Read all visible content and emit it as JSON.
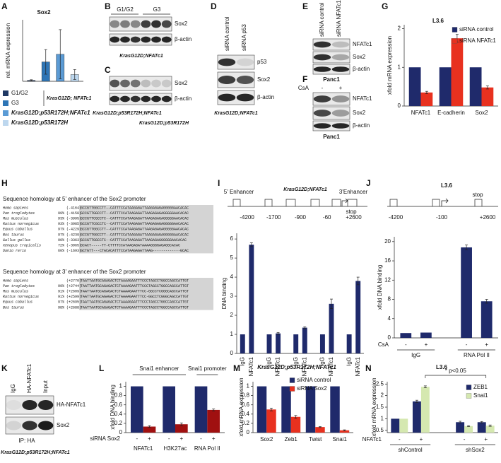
{
  "chart_data": [
    {
      "panel": "A",
      "type": "bar",
      "title": "Sox2",
      "y_label": "rel. mRNA expression",
      "categories": [
        "G1/G2",
        "G3",
        "KrasG12D;p53R172H;NFATc1",
        "KrasG12D;p53R172H"
      ],
      "values": [
        0.003,
        0.063,
        0.088,
        0.022
      ],
      "errors": [
        0.002,
        0.04,
        0.08,
        0.016
      ],
      "colors": [
        "#1f3864",
        "#2e75b6",
        "#5b9bd5",
        "#bdd7ee"
      ],
      "ylim": [
        0,
        0.2
      ],
      "legend_bracket": "KrasG12D; NFATc1"
    },
    {
      "panel": "G",
      "type": "bar",
      "title": "L3.6",
      "y_label": "xfold mRNA expression",
      "categories": [
        "NFATc1",
        "E-cadherin",
        "Sox2"
      ],
      "series": [
        {
          "name": "siRNA control",
          "color": "#1f2a6b",
          "values": [
            1,
            1,
            1
          ]
        },
        {
          "name": "siRNA NFATc1",
          "color": "#e8311f",
          "values": [
            0.35,
            1.75,
            0.48
          ],
          "errors": [
            0.03,
            0.1,
            0.04
          ]
        }
      ],
      "ylim": [
        0,
        2.1
      ],
      "yticks": [
        0,
        1,
        2
      ]
    },
    {
      "panel": "I",
      "type": "bar",
      "title": "KrasG12D;NFATc1",
      "y_label": "DNA binding",
      "categories": [
        "IgG",
        "NFATc1",
        "IgG",
        "NFATc1",
        "IgG",
        "NFATc1",
        "IgG",
        "NFATc1",
        "IgG",
        "NFATc1"
      ],
      "values": [
        1,
        5.7,
        1,
        1.05,
        1,
        1.35,
        1,
        2.6,
        1,
        3.8
      ],
      "errors": [
        null,
        0.1,
        null,
        0.05,
        null,
        0.05,
        null,
        0.25,
        null,
        0.2
      ],
      "color": "#1f2a6b",
      "ylim": [
        0,
        6.3
      ],
      "yticks": [
        0,
        1,
        2,
        3,
        4,
        5,
        6
      ],
      "positions": [
        "-4200",
        "-1700",
        "-900",
        "-60",
        "+2600"
      ],
      "enhancer_5": "5' Enhancer",
      "enhancer_3": "3'Enhancer",
      "stop": "stop"
    },
    {
      "panel": "J",
      "type": "bar",
      "title": "L3.6",
      "y_label": "xfold DNA binding",
      "categories": [
        "-",
        "+",
        "-",
        "+"
      ],
      "groups": [
        "IgG",
        "RNA Pol II"
      ],
      "row_label": "CsA",
      "values": [
        1,
        1.1,
        18.8,
        7.6
      ],
      "errors": [
        null,
        null,
        0.5,
        0.4
      ],
      "color": "#1f2a6b",
      "ylim": [
        0,
        21
      ],
      "yticks": [
        0,
        4,
        8,
        12,
        16,
        20
      ],
      "positions": [
        "-4200",
        "-100",
        "+2600"
      ],
      "stop": "stop"
    },
    {
      "panel": "L",
      "type": "bar",
      "y_label": "xfold DNA binding",
      "categories": [
        "NFATc1",
        "H3K27ac",
        "RNA Pol II"
      ],
      "series": [
        {
          "name": "-",
          "color": "#1f2a6b",
          "values": [
            1,
            1,
            1
          ]
        },
        {
          "name": "+",
          "color": "#a01010",
          "values": [
            0.13,
            0.18,
            0.49
          ],
          "errors": [
            0.02,
            0.03,
            0.02
          ]
        }
      ],
      "legend_title": "siRNA Sox2",
      "ylim": [
        0,
        1.1
      ],
      "yticks": [
        0,
        0.2,
        0.4,
        0.6,
        0.8,
        1
      ],
      "headers": [
        "Snai1 enhancer",
        "Snai1 promoter"
      ]
    },
    {
      "panel": "M",
      "type": "bar",
      "title": "KrasG12D;p53R172H;NFATc1",
      "y_label": "xfold mRNA expression",
      "categories": [
        "Sox2",
        "Zeb1",
        "Twist",
        "Snai1"
      ],
      "series": [
        {
          "name": "siRNA control",
          "color": "#1f2a6b",
          "values": [
            1,
            1,
            1,
            1
          ]
        },
        {
          "name": "siRNA Sox2",
          "color": "#e8311f",
          "values": [
            0.5,
            0.34,
            0.12,
            0.05
          ],
          "errors": [
            0.03,
            0.03,
            0.01,
            0.01
          ]
        }
      ],
      "ylim": [
        0,
        1.1
      ],
      "yticks": [
        0,
        0.2,
        0.4,
        0.6,
        0.8,
        1
      ]
    },
    {
      "panel": "N",
      "type": "bar",
      "title": "L3.6",
      "y_label": "xfold mRNA expression",
      "categories": [
        "-",
        "+",
        "-",
        "+"
      ],
      "groups": [
        "shControl",
        "shSox2"
      ],
      "row_label": "NFATc1",
      "series": [
        {
          "name": "ZEB1",
          "color": "#1f2a6b",
          "values": [
            1,
            1.75,
            0.85,
            0.85
          ],
          "errors": [
            null,
            0.05,
            0.04,
            0.03
          ]
        },
        {
          "name": "Snai1",
          "color": "#d5e8b0",
          "values": [
            1,
            2.38,
            0.68,
            0.7
          ],
          "errors": [
            null,
            0.04,
            0.02,
            0.03
          ]
        }
      ],
      "ylim": [
        0.4,
        2.6
      ],
      "yticks": [
        0.5,
        1,
        1.5,
        2,
        2.5
      ],
      "annotation": "* p<0.05"
    }
  ],
  "blots": [
    {
      "panel": "B",
      "lanes": [
        "G1/G2",
        "G3"
      ],
      "rows": [
        "Sox2",
        "β-actin"
      ],
      "caption": "KrasG12D;NFATc1"
    },
    {
      "panel": "C",
      "rows": [
        "Sox2",
        "β-actin"
      ],
      "captions": [
        "KrasG12D;p53R172H;NFATc1",
        "KrasG12D;p53R172H"
      ]
    },
    {
      "panel": "D",
      "lanes": [
        "siRNA control",
        "siRNA p53"
      ],
      "rows": [
        "p53",
        "Sox2",
        "β-actin"
      ],
      "caption": "KrasG12D;NFATc1"
    },
    {
      "panel": "E",
      "lanes": [
        "siRNA control",
        "siRNA NFATc1"
      ],
      "rows": [
        "NFATc1",
        "Sox2",
        "β-actin"
      ],
      "caption": "Panc1"
    },
    {
      "panel": "F",
      "lane_label": "CsA",
      "lanes": [
        "-",
        "+"
      ],
      "rows": [
        "NFATc1",
        "Sox2",
        "β-actin"
      ],
      "caption": "Panc1"
    },
    {
      "panel": "K",
      "lanes": [
        "IgG",
        "HA-NFATc1",
        "Input"
      ],
      "rows": [
        "HA-NFATc1",
        "Sox2"
      ],
      "ip_label": "IP: HA",
      "caption": "KrasG12D;p53R172H;NFATc1"
    }
  ],
  "sequences": {
    "panel": "H",
    "blocks": [
      {
        "title": "Sequence homology at 5' enhancer of the Sox2 promoter",
        "rows": [
          {
            "species": "Homo sapiens",
            "position": "(-4164)",
            "pre": "GCCGTTGGCCTT--CA",
            "site": "TTTCC",
            "post": "ATAAGAGATTAAGAGAGAGGGGGAACACAC"
          },
          {
            "species": "Pan troglodytes",
            "identity": "99%",
            "position": "(-4158)",
            "pre": "GCCGTTGGCCTT--CA",
            "site": "TTTCC",
            "post": "ATAAGAGATTAAGAGAGAGGGGGAACACAC"
          },
          {
            "species": "Mus musculus",
            "identity": "93%",
            "position": "(-3995)",
            "pre": "GCCGTTCGCCTC--CA",
            "site": "TTTCC",
            "post": "ATAAGAGATTAAGAGAGAGGGGGAACACAC"
          },
          {
            "species": "Rattus norvegicus",
            "identity": "93%",
            "position": "(-3985)",
            "pre": "GCCGTTCGCCTC--CA",
            "site": "TTTCC",
            "post": "ATAAGAGATTAAGAGAGAGGGGGAACACAC"
          },
          {
            "species": "Equus caballus",
            "identity": "97%",
            "position": "(-4229)",
            "pre": "GCCGTTGGCCTT--CA",
            "site": "TTTCC",
            "post": "ATAAGAGATTAAGAGAGAGGGGGAACACAC"
          },
          {
            "species": "Bos taurus",
            "identity": "97%",
            "position": "(-4239)",
            "pre": "GCCGTTGGCCTT--CA",
            "site": "TTTCC",
            "post": "ATAAGAGATTAAGAGAGAGGGGGAACACAC"
          },
          {
            "species": "Gallus gallus",
            "identity": "90%",
            "position": "(-3363)",
            "pre": "GCCGTTGGCCTC--CA",
            "site": "TTTCC",
            "post": "ATAAGAGATTAAGAGAGGGGGGAACACAC"
          },
          {
            "species": "Xenopus tropicalis",
            "identity": "72%",
            "position": "(-3065)",
            "pre": "GCACT-----TT-CT",
            "site": "TTTCC",
            "post": "ATAAGAGATAAAAGGGGAGAGGCACAC"
          },
          {
            "species": "Danio rerio",
            "identity": "60%",
            "position": "(-1693)",
            "pre": "GCTGTT---CTACACA",
            "site": "TTTCC",
            "post": "ATAAGAGATTAAG-------------GCAC"
          }
        ]
      },
      {
        "title": "Sequence homology at 3' enhancer of the Sox2 promoter",
        "rows": [
          {
            "species": "Homo sapiens",
            "position": "(+2770)",
            "pre": "TAATTAATGCAGAGACTCTAAAAGAA",
            "site": "TTTCC",
            "post": "CTAGCCTGGCCAGCCATTGT"
          },
          {
            "species": "Pan troglodytes",
            "identity": "99%",
            "position": "(+2744)",
            "pre": "TAATTAATGCAGAGACTCTAAAAGAA",
            "site": "TTTCC",
            "post": "CTAGCCTGGCCAGCCATTGT"
          },
          {
            "species": "Mus musculus",
            "identity": "91%",
            "position": "(+2609)",
            "pre": "TAATTAATGCAGAGACTCTAAAAGAA",
            "site": "TTTCC",
            "post": "-GGCCTCGGGCAGCCATTGT"
          },
          {
            "species": "Rattus norvegicus",
            "identity": "91%",
            "position": "(+2599)",
            "pre": "TAATTAATGCAGAGACTCTAAAAGAA",
            "site": "TTTCC",
            "post": "-GGCCTCGGGCAGCCATTGT"
          },
          {
            "species": "Equus caballus",
            "identity": "97%",
            "position": "(+2695)",
            "pre": "TAATTAATGCAGAGACTCTAAAAGAA",
            "site": "TTTCC",
            "post": "CTAGCCTGGCCAGCCATTGT"
          },
          {
            "species": "Bos taurus",
            "identity": "98%",
            "position": "(+2688)",
            "pre": "TAATTAATGCAGAGACTCTAAAAGAA",
            "site": "TTTCC",
            "post": "CTAGCCTGGCCAGCCATTGT"
          }
        ]
      }
    ]
  }
}
